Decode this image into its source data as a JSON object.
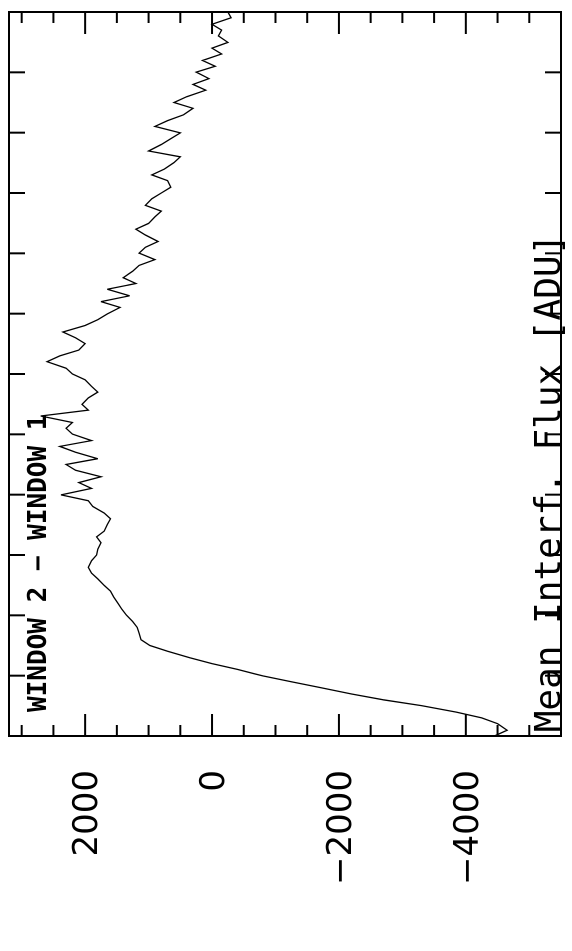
{
  "chart_data": {
    "type": "line",
    "orientation": "rotated-90-ccw",
    "ylabel": "Mean Interf. Flux [ADU]",
    "annotation": "WINDOW 2 − WINDOW 1",
    "ytick_labels": [
      "2000",
      "0",
      "−2000",
      "−4000"
    ],
    "ytick_values": [
      2000,
      0,
      -2000,
      -4000
    ],
    "ylim": [
      -5500,
      3200
    ],
    "xlim": [
      0,
      1
    ],
    "x_tick_count": 13,
    "grid": false,
    "series": [
      {
        "x": [
          0.0,
          0.008,
          0.017,
          0.025,
          0.033,
          0.042,
          0.05,
          0.058,
          0.067,
          0.075,
          0.083,
          0.092,
          0.1,
          0.108,
          0.117,
          0.125,
          0.133,
          0.142,
          0.15,
          0.158,
          0.167,
          0.175,
          0.183,
          0.192,
          0.2,
          0.208,
          0.217,
          0.225,
          0.233,
          0.242,
          0.25,
          0.258,
          0.267,
          0.275,
          0.283,
          0.292,
          0.3,
          0.308,
          0.317,
          0.325,
          0.333,
          0.342,
          0.35,
          0.358,
          0.367,
          0.375,
          0.383,
          0.392,
          0.4,
          0.408,
          0.417,
          0.425,
          0.433,
          0.442,
          0.45,
          0.458,
          0.467,
          0.475,
          0.483,
          0.492,
          0.5,
          0.508,
          0.517,
          0.525,
          0.533,
          0.542,
          0.55,
          0.558,
          0.567,
          0.575,
          0.583,
          0.592,
          0.6,
          0.608,
          0.617,
          0.625,
          0.633,
          0.642,
          0.65,
          0.658,
          0.667,
          0.675,
          0.683,
          0.692,
          0.7,
          0.708,
          0.717,
          0.725,
          0.733,
          0.742,
          0.75,
          0.758,
          0.767,
          0.775,
          0.783,
          0.792,
          0.8,
          0.808,
          0.817,
          0.825,
          0.833,
          0.842,
          0.85,
          0.858,
          0.867,
          0.875,
          0.883,
          0.892,
          0.9,
          0.908,
          0.917,
          0.925,
          0.933,
          0.942,
          0.95,
          0.958,
          0.967,
          0.975,
          0.983,
          0.992,
          1.0
        ],
        "y": [
          -4450,
          -4650,
          -4500,
          -4250,
          -3850,
          -3300,
          -2700,
          -2200,
          -1700,
          -1250,
          -800,
          -400,
          0,
          350,
          700,
          980,
          1120,
          1150,
          1180,
          1250,
          1350,
          1420,
          1480,
          1550,
          1600,
          1700,
          1800,
          1900,
          1950,
          1900,
          1820,
          1800,
          1750,
          1820,
          1700,
          1650,
          1600,
          1700,
          1880,
          1950,
          2380,
          1900,
          2100,
          1750,
          2150,
          2300,
          1800,
          2150,
          2400,
          1900,
          2200,
          2300,
          2200,
          2700,
          1950,
          2050,
          1950,
          1800,
          1900,
          2000,
          2200,
          2300,
          2600,
          2400,
          2100,
          2000,
          2150,
          2350,
          2000,
          1800,
          1650,
          1450,
          1750,
          1300,
          1650,
          1200,
          1400,
          1250,
          1150,
          900,
          1150,
          1050,
          850,
          1050,
          1200,
          1000,
          900,
          800,
          1050,
          950,
          800,
          650,
          700,
          950,
          750,
          600,
          500,
          1000,
          800,
          650,
          500,
          900,
          700,
          450,
          300,
          600,
          400,
          100,
          300,
          50,
          250,
          -50,
          150,
          -150,
          0,
          -250,
          -100,
          -150,
          0,
          -300,
          -250
        ]
      }
    ]
  }
}
